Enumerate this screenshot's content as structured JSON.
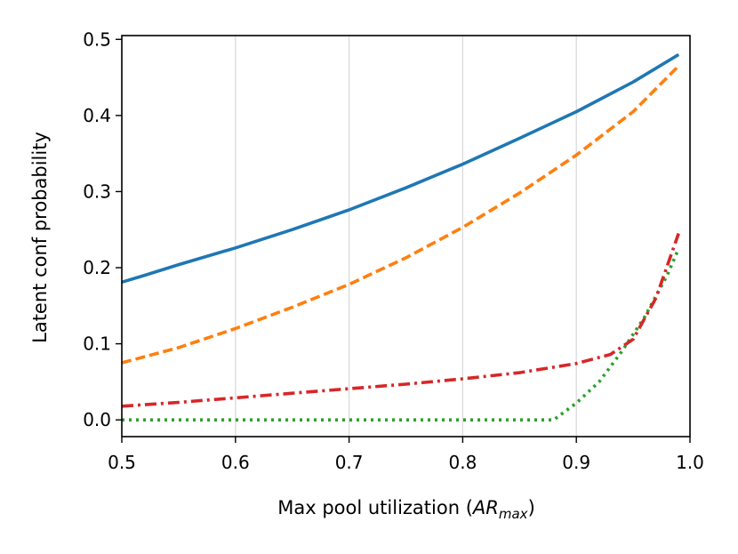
{
  "chart_data": {
    "type": "line",
    "title": "",
    "xlabel_parts": [
      "Max pool utilization (",
      "AR",
      "max",
      ")"
    ],
    "ylabel": "Latent conf probability",
    "xlim": [
      0.5,
      1.0
    ],
    "ylim": [
      -0.022,
      0.505
    ],
    "xticks": [
      0.5,
      0.6,
      0.7,
      0.8,
      0.9,
      1.0
    ],
    "xtick_labels": [
      "0.5",
      "0.6",
      "0.7",
      "0.8",
      "0.9",
      "1.0"
    ],
    "yticks": [
      0.0,
      0.1,
      0.2,
      0.3,
      0.4,
      0.5
    ],
    "ytick_labels": [
      "0.0",
      "0.1",
      "0.2",
      "0.3",
      "0.4",
      "0.5"
    ],
    "grid": "vertical",
    "legend": "none",
    "series": [
      {
        "color": "#1f77b4",
        "style": "solid",
        "points": [
          [
            0.5,
            0.181
          ],
          [
            0.52,
            0.19
          ],
          [
            0.55,
            0.204
          ],
          [
            0.6,
            0.226
          ],
          [
            0.65,
            0.25
          ],
          [
            0.7,
            0.276
          ],
          [
            0.75,
            0.305
          ],
          [
            0.8,
            0.336
          ],
          [
            0.85,
            0.37
          ],
          [
            0.9,
            0.405
          ],
          [
            0.95,
            0.444
          ],
          [
            0.99,
            0.48
          ]
        ]
      },
      {
        "color": "#ff7f0e",
        "style": "dashed",
        "points": [
          [
            0.5,
            0.075
          ],
          [
            0.55,
            0.095
          ],
          [
            0.6,
            0.12
          ],
          [
            0.65,
            0.148
          ],
          [
            0.7,
            0.178
          ],
          [
            0.75,
            0.213
          ],
          [
            0.8,
            0.253
          ],
          [
            0.85,
            0.298
          ],
          [
            0.9,
            0.348
          ],
          [
            0.95,
            0.405
          ],
          [
            0.99,
            0.465
          ]
        ]
      },
      {
        "color": "#2ca02c",
        "style": "dotted",
        "points": [
          [
            0.5,
            0.0
          ],
          [
            0.6,
            0.0
          ],
          [
            0.7,
            0.0
          ],
          [
            0.8,
            0.0
          ],
          [
            0.88,
            0.0
          ],
          [
            0.9,
            0.022
          ],
          [
            0.92,
            0.05
          ],
          [
            0.94,
            0.09
          ],
          [
            0.96,
            0.135
          ],
          [
            0.98,
            0.19
          ],
          [
            0.99,
            0.225
          ]
        ]
      },
      {
        "color": "#d62728",
        "style": "dashdot",
        "points": [
          [
            0.5,
            0.018
          ],
          [
            0.55,
            0.023
          ],
          [
            0.6,
            0.029
          ],
          [
            0.65,
            0.035
          ],
          [
            0.7,
            0.041
          ],
          [
            0.75,
            0.047
          ],
          [
            0.8,
            0.054
          ],
          [
            0.85,
            0.062
          ],
          [
            0.9,
            0.074
          ],
          [
            0.93,
            0.086
          ],
          [
            0.95,
            0.106
          ],
          [
            0.97,
            0.16
          ],
          [
            0.99,
            0.245
          ]
        ]
      }
    ]
  }
}
